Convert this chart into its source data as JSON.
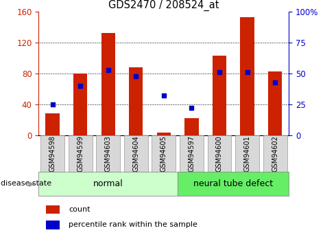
{
  "title": "GDS2470 / 208524_at",
  "categories": [
    "GSM94598",
    "GSM94599",
    "GSM94603",
    "GSM94604",
    "GSM94605",
    "GSM94597",
    "GSM94600",
    "GSM94601",
    "GSM94602"
  ],
  "count_values": [
    28,
    80,
    133,
    88,
    3,
    22,
    103,
    153,
    83
  ],
  "percentile_values": [
    25,
    40,
    53,
    48,
    32,
    22,
    51,
    51,
    43
  ],
  "left_ylim": [
    0,
    160
  ],
  "right_ylim": [
    0,
    100
  ],
  "left_yticks": [
    0,
    40,
    80,
    120,
    160
  ],
  "right_yticks": [
    0,
    25,
    50,
    75,
    100
  ],
  "right_yticklabels": [
    "0",
    "25",
    "50",
    "75",
    "100%"
  ],
  "bar_color": "#cc2200",
  "dot_color": "#0000cc",
  "normal_color": "#ccffcc",
  "neural_color": "#66ee66",
  "disease_state_label": "disease state",
  "legend_items": [
    "count",
    "percentile rank within the sample"
  ],
  "tick_label_bg": "#d8d8d8",
  "grid_yticks": [
    40,
    80,
    120
  ]
}
